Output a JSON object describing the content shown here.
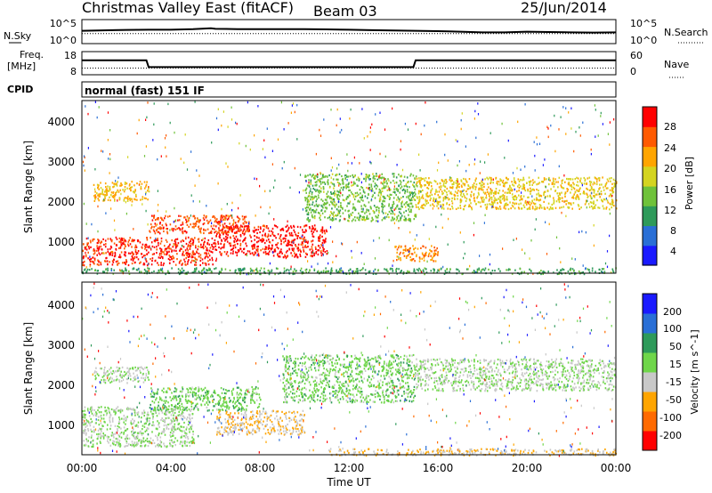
{
  "header": {
    "title": "Christmas Valley East (fitACF)",
    "beam": "Beam 03",
    "date": "25/Jun/2014"
  },
  "strip_nsky": {
    "left_label": "N.Sky",
    "right_label": "N.Search",
    "left_ticks": [
      "10^5",
      "10^0"
    ],
    "right_ticks": [
      "10^5",
      "10^0"
    ]
  },
  "strip_freq": {
    "left_label_1": "Freq.",
    "left_label_2": "[MHz]",
    "right_label": "Nave",
    "left_ticks": [
      "18",
      "8"
    ],
    "right_ticks": [
      "60",
      "0"
    ]
  },
  "cpid": {
    "label": "CPID",
    "value": "normal (fast) 151 IF"
  },
  "x_axis": {
    "label": "Time UT",
    "ticks": [
      "00:00",
      "04:00",
      "08:00",
      "12:00",
      "16:00",
      "20:00",
      "00:00"
    ]
  },
  "power_panel": {
    "ylabel": "Slant Range [km]",
    "yticks": [
      "1000",
      "2000",
      "3000",
      "4000"
    ],
    "colorbar_label": "Power [dB]",
    "colorbar_ticks": [
      "28",
      "24",
      "20",
      "16",
      "12",
      "8",
      "4"
    ]
  },
  "velocity_panel": {
    "ylabel": "Slant Range [km]",
    "yticks": [
      "1000",
      "2000",
      "3000",
      "4000"
    ],
    "colorbar_label": "Velocity [m s^-1]",
    "colorbar_ticks": [
      "200",
      "100",
      "50",
      "15",
      "-15",
      "-50",
      "-100",
      "-200"
    ]
  },
  "chart_data": [
    {
      "type": "line",
      "title": "N.Sky / N.Search",
      "x_range": [
        0,
        24
      ],
      "y_scale": "log",
      "ylim": [
        1,
        100000
      ],
      "series": [
        {
          "name": "N.Sky",
          "style": "solid",
          "x": [
            0,
            2,
            3,
            4,
            5,
            5.8,
            6,
            7,
            8,
            9,
            10,
            11,
            12,
            13,
            14,
            15,
            16,
            17,
            18,
            19,
            20,
            21,
            22,
            23,
            24
          ],
          "values": [
            500,
            800,
            900,
            900,
            1200,
            2000,
            1500,
            1300,
            1200,
            1200,
            1300,
            1100,
            900,
            700,
            600,
            500,
            400,
            300,
            200,
            200,
            300,
            250,
            200,
            180,
            200
          ]
        },
        {
          "name": "N.Search",
          "style": "dotted",
          "x": [
            0,
            4,
            8,
            12,
            16,
            20,
            24
          ],
          "values": [
            100,
            100,
            100,
            100,
            100,
            100,
            100
          ]
        }
      ]
    },
    {
      "type": "line",
      "title": "Freq. [MHz] / Nave",
      "x_range": [
        0,
        24
      ],
      "series": [
        {
          "name": "Freq.",
          "unit": "MHz",
          "style": "solid",
          "x": [
            0,
            2.9,
            3.0,
            14.9,
            15.0,
            24
          ],
          "values": [
            14.5,
            14.5,
            11.0,
            11.0,
            14.5,
            14.5
          ]
        },
        {
          "name": "Nave",
          "style": "dotted",
          "x": [
            0,
            6,
            12,
            18,
            24
          ],
          "values": [
            15,
            15,
            15,
            15,
            15
          ]
        }
      ]
    },
    {
      "type": "heatmap",
      "title": "Power [dB]",
      "x_range": [
        0,
        24
      ],
      "ylim": [
        180,
        4500
      ],
      "ylabel": "Slant Range [km]",
      "colorbar": {
        "min": 0,
        "max": 30,
        "ticks": [
          4,
          8,
          12,
          16,
          20,
          24,
          28
        ]
      },
      "colors": [
        "#1a1aff",
        "#2a6fd6",
        "#2e9a5a",
        "#6fc23a",
        "#d4d420",
        "#ffa500",
        "#ff5a00",
        "#ff0000"
      ],
      "features": [
        {
          "x": [
            0,
            6
          ],
          "range": [
            400,
            1100
          ],
          "value": 27
        },
        {
          "x": [
            3,
            7.5
          ],
          "range": [
            1200,
            1650
          ],
          "value": 25
        },
        {
          "x": [
            6,
            11
          ],
          "range": [
            600,
            1400
          ],
          "value": 28
        },
        {
          "x": [
            10,
            15
          ],
          "range": [
            1500,
            2700
          ],
          "value": 13
        },
        {
          "x": [
            14,
            16
          ],
          "range": [
            500,
            900
          ],
          "value": 22
        },
        {
          "x": [
            0.5,
            3
          ],
          "range": [
            2000,
            2500
          ],
          "value": 20
        },
        {
          "x": [
            15,
            24
          ],
          "range": [
            1800,
            2600
          ],
          "value": 18
        },
        {
          "x": [
            0,
            24
          ],
          "range": [
            180,
            330
          ],
          "value": 10
        }
      ]
    },
    {
      "type": "heatmap",
      "title": "Velocity [m s^-1]",
      "x_range": [
        0,
        24
      ],
      "ylim": [
        180,
        4500
      ],
      "ylabel": "Slant Range [km]",
      "colorbar": {
        "min": -250,
        "max": 250,
        "ticks": [
          -200,
          -100,
          -50,
          -15,
          15,
          50,
          100,
          200
        ]
      },
      "colors": [
        "#ff0000",
        "#ff6a00",
        "#ffa500",
        "#c8c8c8",
        "#6fd64a",
        "#2e9a5a",
        "#2a6fd6",
        "#1a1aff"
      ],
      "features": [
        {
          "x": [
            0,
            5
          ],
          "range": [
            400,
            1400
          ],
          "value": 0
        },
        {
          "x": [
            3,
            8
          ],
          "range": [
            1300,
            1900
          ],
          "value": 40
        },
        {
          "x": [
            6,
            10
          ],
          "range": [
            700,
            1300
          ],
          "value": -60
        },
        {
          "x": [
            9,
            15
          ],
          "range": [
            1500,
            2700
          ],
          "value": 30
        },
        {
          "x": [
            0.5,
            3
          ],
          "range": [
            2000,
            2400
          ],
          "value": 0
        },
        {
          "x": [
            15,
            24
          ],
          "range": [
            1800,
            2600
          ],
          "value": 0
        },
        {
          "x": [
            11,
            24
          ],
          "range": [
            180,
            350
          ],
          "value": -60
        }
      ]
    }
  ]
}
